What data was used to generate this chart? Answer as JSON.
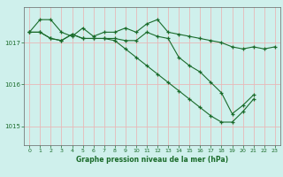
{
  "title": "Graphe pression niveau de la mer (hPa)",
  "background_color": "#cff0ec",
  "grid_color": "#e8b8b8",
  "line_color": "#1a6b2a",
  "ylim": [
    1014.55,
    1017.85
  ],
  "xlim": [
    -0.5,
    23.5
  ],
  "yticks": [
    1015,
    1016,
    1017
  ],
  "xticks": [
    0,
    1,
    2,
    3,
    4,
    5,
    6,
    7,
    8,
    9,
    10,
    11,
    12,
    13,
    14,
    15,
    16,
    17,
    18,
    19,
    20,
    21,
    22,
    23
  ],
  "series": [
    [
      1017.25,
      1017.55,
      1017.55,
      1017.25,
      1017.15,
      1017.35,
      1017.15,
      1017.25,
      1017.25,
      1017.35,
      1017.25,
      1017.45,
      1017.55,
      1017.25,
      1017.2,
      1017.15,
      1017.1,
      1017.05,
      1017.0,
      1016.9,
      1016.85,
      1016.9,
      1016.85,
      1016.9
    ],
    [
      1017.25,
      1017.25,
      1017.1,
      1017.05,
      1017.2,
      1017.1,
      1017.1,
      1017.1,
      1017.1,
      1017.05,
      1017.05,
      1017.25,
      1017.15,
      1017.1,
      1016.65,
      1016.45,
      1016.3,
      1016.05,
      1015.8,
      1015.3,
      1015.5,
      1015.75,
      null,
      null
    ],
    [
      1017.25,
      1017.25,
      1017.1,
      1017.05,
      1017.2,
      1017.1,
      1017.1,
      1017.1,
      1017.05,
      1016.85,
      1016.65,
      1016.45,
      1016.25,
      1016.05,
      1015.85,
      1015.65,
      1015.45,
      1015.25,
      1015.1,
      1015.1,
      1015.35,
      1015.65,
      null,
      null
    ]
  ]
}
